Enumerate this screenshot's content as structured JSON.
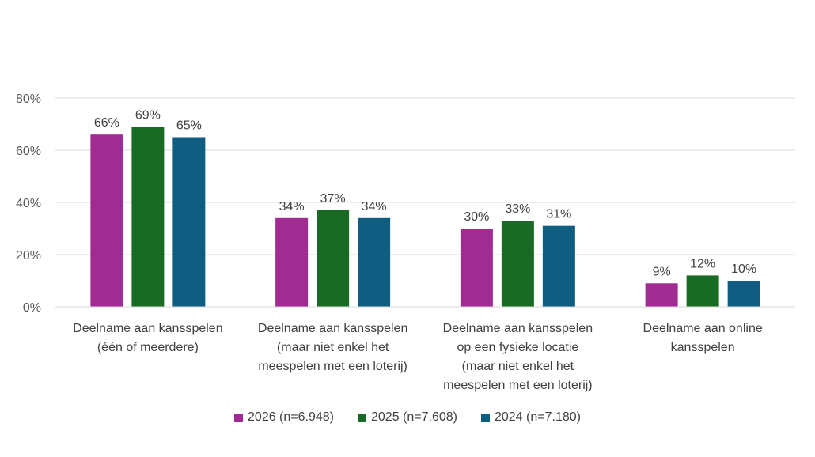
{
  "chart_data": {
    "type": "bar",
    "title": "",
    "ylim": [
      0,
      80
    ],
    "yticks": [
      "0%",
      "20%",
      "40%",
      "60%",
      "80%"
    ],
    "grid": true,
    "legend_position": "bottom",
    "categories": [
      [
        "Deelname aan kansspelen",
        "(één of meerdere)"
      ],
      [
        "Deelname aan kansspelen",
        "(maar niet enkel het",
        "meespelen met een loterij)"
      ],
      [
        "Deelname aan kansspelen",
        "op een fysieke locatie",
        "(maar niet enkel het",
        "meespelen met een loterij)"
      ],
      [
        "Deelname aan online",
        "kansspelen"
      ]
    ],
    "series": [
      {
        "name": "2026 (n=6.948)",
        "color": "#A02B93",
        "values": [
          66,
          34,
          30,
          9
        ]
      },
      {
        "name": "2025 (n=7.608)",
        "color": "#196B24",
        "values": [
          69,
          37,
          33,
          12
        ]
      },
      {
        "name": "2024 (n=7.180)",
        "color": "#0F5E82",
        "values": [
          65,
          34,
          31,
          10
        ]
      }
    ]
  }
}
